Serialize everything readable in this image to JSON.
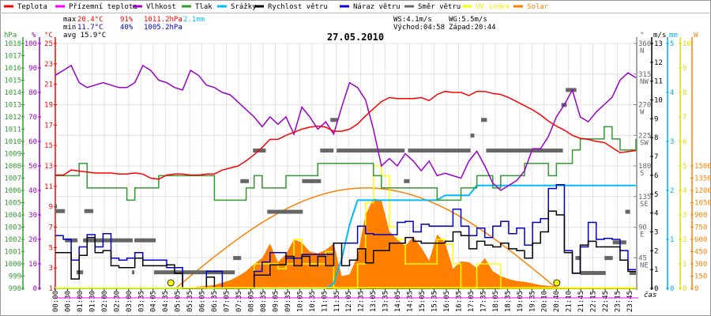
{
  "chart_data": {
    "type": "line",
    "title": "27.05.2010",
    "legend": [
      {
        "label": "Teplota",
        "color": "#ff0000"
      },
      {
        "label": "Přízemní teplota",
        "color": "#ff00ff"
      },
      {
        "label": "Vlhkost",
        "color": "#9900cc"
      },
      {
        "label": "Tlak",
        "color": "#339933"
      },
      {
        "label": "Srážky",
        "color": "#00bbff"
      },
      {
        "label": "Rychlost větru",
        "color": "#000000"
      },
      {
        "label": "Náraz větru",
        "color": "#0000cc"
      },
      {
        "label": "Směr větru",
        "color": "#666666"
      },
      {
        "label": "UV index",
        "color": "#ffff00"
      },
      {
        "label": "Solar",
        "color": "#ff8000"
      }
    ],
    "legend_placement": "top",
    "stats": {
      "max_label": "max",
      "max_temp": "20.4°C",
      "max_hum": "91%",
      "max_press": "1011.2hPa",
      "rain_total": "2.1mm",
      "min_label": "min",
      "min_temp": "11.7°C",
      "min_hum": "40%",
      "min_press": "1005.2hPa",
      "avg": "avg 15.9°C",
      "ws": "WS:4.1m/s",
      "wg": "WG:5.5m/s",
      "sunrise": "Východ:04:58",
      "sunset": "Západ:20:44"
    },
    "sun": {
      "rise_h": 4.97,
      "set_h": 20.73,
      "theoretical_peak_w": 1230
    },
    "xlabel": "čas",
    "x_range_hours": [
      0,
      24
    ],
    "x_ticks": [
      "00:00",
      "00:30",
      "01:00",
      "01:30",
      "02:00",
      "02:30",
      "03:00",
      "03:35",
      "04:05",
      "04:35",
      "05:05",
      "05:35",
      "06:05",
      "06:35",
      "07:05",
      "07:35",
      "08:05",
      "08:35",
      "09:05",
      "09:35",
      "10:05",
      "10:35",
      "11:05",
      "11:35",
      "12:05",
      "12:35",
      "13:05",
      "13:35",
      "14:05",
      "14:35",
      "15:05",
      "15:35",
      "16:05",
      "16:35",
      "17:05",
      "17:35",
      "18:05",
      "18:35",
      "19:05",
      "19:35",
      "20:10",
      "20:40",
      "21:10",
      "21:45",
      "22:15",
      "22:45",
      "23:15",
      "23:45"
    ],
    "axes": {
      "pressure": {
        "unit": "hPa",
        "range": [
          998,
          1018
        ],
        "step": 1,
        "color": "#339933"
      },
      "humidity": {
        "unit": "%",
        "range": [
          0,
          100
        ],
        "step": 10,
        "color": "#9900cc"
      },
      "temperature": {
        "unit": "°C",
        "range": [
          1,
          25
        ],
        "step": 2,
        "color": "#ff0000"
      },
      "direction": {
        "unit": "°",
        "range": [
          0,
          360
        ],
        "ticks": [
          {
            "v": 45,
            "label": "45",
            "c": "NE"
          },
          {
            "v": 90,
            "label": "90",
            "c": "E"
          },
          {
            "v": 135,
            "label": "135",
            "c": "SE"
          },
          {
            "v": 180,
            "label": "180",
            "c": "S"
          },
          {
            "v": 225,
            "label": "225",
            "c": "SW"
          },
          {
            "v": 270,
            "label": "270",
            "c": "W"
          },
          {
            "v": 315,
            "label": "315",
            "c": "NW"
          },
          {
            "v": 360,
            "label": "360",
            "c": "N"
          }
        ],
        "color": "#666666"
      },
      "wind": {
        "unit": "m/s",
        "range": [
          0,
          13
        ],
        "step": 1,
        "color": "#000000"
      },
      "rain": {
        "unit": "mm",
        "range": [
          0,
          5
        ],
        "step": 1,
        "color": "#00aaee"
      },
      "uv": {
        "unit": "",
        "range": [
          0,
          10
        ],
        "step": 1,
        "color": "#dddd00"
      },
      "solar": {
        "unit": "W",
        "range": [
          0,
          3000
        ],
        "labeled_max": 1500,
        "step": 150,
        "color": "#ff8000"
      }
    },
    "grid": true,
    "series": {
      "temperature": [
        12.1,
        12.1,
        12.6,
        12.5,
        12.4,
        12.3,
        12.3,
        12.3,
        12.2,
        12.2,
        12.3,
        12.2,
        11.8,
        11.7,
        12.1,
        12.2,
        12.2,
        12.1,
        12.1,
        12.2,
        12.2,
        12.6,
        12.8,
        13.0,
        13.5,
        14.1,
        14.8,
        15.6,
        15.6,
        16.0,
        16.3,
        16.6,
        16.8,
        16.9,
        16.8,
        16.4,
        16.4,
        16.6,
        17.1,
        17.9,
        18.6,
        19.3,
        19.7,
        19.6,
        19.6,
        19.6,
        19.7,
        19.4,
        20.0,
        20.3,
        20.2,
        20.2,
        19.9,
        20.3,
        20.3,
        20.1,
        20.0,
        19.7,
        19.3,
        18.9,
        18.5,
        18.0,
        17.4,
        16.9,
        16.5,
        16.0,
        15.7,
        15.6,
        15.4,
        15.3,
        14.8,
        14.3,
        14.4,
        14.5
      ],
      "humidity": [
        87,
        89,
        91,
        84,
        82,
        83,
        84,
        83,
        82,
        82,
        84,
        91,
        89,
        85,
        84,
        82,
        81,
        89,
        87,
        83,
        82,
        80,
        79,
        76,
        73,
        70,
        66,
        70,
        67,
        70,
        63,
        74,
        70,
        65,
        68,
        63,
        74,
        84,
        82,
        77,
        65,
        50,
        53,
        50,
        55,
        52,
        48,
        52,
        46,
        47,
        46,
        45,
        52,
        56,
        50,
        43,
        40,
        42,
        44,
        48,
        57,
        57,
        62,
        70,
        75,
        81,
        70,
        68,
        72,
        75,
        78,
        85,
        88,
        86
      ],
      "pressure": [
        1007.2,
        1007.2,
        1007.2,
        1008.2,
        1006.2,
        1006.2,
        1006.2,
        1006.2,
        1006.2,
        1005.2,
        1006.2,
        1006.2,
        1006.2,
        1007.2,
        1007.2,
        1007.2,
        1007.2,
        1007.2,
        1007.2,
        1007.2,
        1005.2,
        1005.2,
        1005.2,
        1005.2,
        1006.2,
        1007.2,
        1006.2,
        1006.2,
        1006.2,
        1007.2,
        1007.2,
        1007.2,
        1007.2,
        1008.2,
        1008.2,
        1008.2,
        1008.2,
        1008.2,
        1008.2,
        1008.2,
        1007.2,
        1006.2,
        1006.2,
        1006.2,
        1006.2,
        1006.2,
        1006.2,
        1006.2,
        1005.2,
        1005.2,
        1005.2,
        1006.2,
        1006.2,
        1007.2,
        1007.2,
        1006.2,
        1007.2,
        1007.2,
        1007.2,
        1008.2,
        1008.2,
        1008.2,
        1007.2,
        1008.2,
        1008.2,
        1009.3,
        1010.2,
        1010.2,
        1010.2,
        1011.2,
        1010.2,
        1009.3,
        1009.3,
        1010.2
      ],
      "apparent_temperature": [],
      "rain": [
        0,
        0,
        0,
        0,
        0,
        0,
        0,
        0,
        0,
        0,
        0,
        0,
        0,
        0,
        0,
        0,
        0,
        0,
        0,
        0,
        0,
        0,
        0,
        0,
        0,
        0,
        0,
        0,
        0,
        0,
        0,
        0,
        0,
        0,
        0,
        0.1,
        0.6,
        1.3,
        1.8,
        1.8,
        1.8,
        1.8,
        1.8,
        1.8,
        1.8,
        1.8,
        1.8,
        1.8,
        1.8,
        1.9,
        1.9,
        1.9,
        1.9,
        2.1,
        2.1,
        2.1,
        2.1,
        2.1,
        2.1,
        2.1,
        2.1,
        2.1,
        2.1,
        2.1,
        2.1,
        2.1,
        2.1,
        2.1,
        2.1,
        2.1,
        2.1,
        2.1,
        2.1,
        2.1
      ],
      "wind_speed": [
        1.9,
        1.9,
        0.5,
        1.75,
        2.7,
        1.9,
        2.0,
        1.2,
        1.1,
        1.1,
        1.6,
        1.2,
        1.2,
        1.2,
        1.25,
        0.8,
        0,
        0,
        0,
        0.6,
        0,
        0,
        0,
        0,
        0,
        0.7,
        0.7,
        1.25,
        1.25,
        1.7,
        1.2,
        1.7,
        1.2,
        1.7,
        1.2,
        2.4,
        1.2,
        1.5,
        2.1,
        1.35,
        2.0,
        2.0,
        2.4,
        2.4,
        2.7,
        2.5,
        2.4,
        2.4,
        2.4,
        2.5,
        3.0,
        2.8,
        2.1,
        2.5,
        2.3,
        2.2,
        2.4,
        2.1,
        2.0,
        1.6,
        2.4,
        3.0,
        4.1,
        3.9,
        1.9,
        0.8,
        2.3,
        2.5,
        2.2,
        2.2,
        2.2,
        1.5,
        0.9,
        0.9
      ],
      "wind_gust": [
        2.8,
        2.6,
        1.5,
        2.2,
        2.85,
        2.2,
        2.9,
        1.6,
        1.5,
        1.6,
        1.9,
        1.5,
        1.5,
        1.5,
        1.1,
        1.1,
        0,
        0,
        0,
        0.9,
        0.9,
        0,
        0,
        0,
        0,
        0.9,
        1.4,
        1.9,
        1.9,
        1.6,
        1.6,
        1.8,
        1.8,
        1.8,
        1.8,
        2.4,
        2.4,
        2.4,
        3.3,
        2.9,
        2.85,
        2.85,
        2.85,
        3.5,
        3.55,
        3.0,
        3.4,
        3.3,
        3.3,
        3.3,
        4.2,
        3.3,
        2.8,
        3.2,
        2.7,
        3.3,
        3.55,
        2.9,
        3.2,
        2.3,
        3.5,
        3.7,
        5.3,
        5.5,
        2.0,
        0.8,
        2.2,
        3.5,
        2.6,
        2.65,
        2.6,
        2.0,
        1.0,
        1.0
      ],
      "uv_index": [
        0,
        0,
        0,
        0,
        0,
        0,
        0,
        0,
        0,
        0,
        0,
        0,
        0,
        0,
        0,
        0,
        0,
        0,
        0,
        0,
        0,
        0,
        0,
        0,
        0,
        1,
        1,
        1,
        0.8,
        1,
        2,
        1,
        1,
        1,
        1.5,
        0,
        0,
        0,
        1,
        3.5,
        5,
        4.6,
        2.5,
        2,
        1,
        1,
        1,
        1,
        2,
        1.8,
        1,
        0,
        0,
        1,
        1,
        1,
        0,
        0,
        0,
        0,
        0,
        0,
        0,
        0,
        0,
        0,
        0,
        0,
        0,
        0,
        0,
        0,
        0,
        0
      ],
      "solar": [
        0,
        0,
        0,
        0,
        0,
        0,
        0,
        0,
        0,
        0,
        0,
        0,
        0,
        0,
        0,
        0,
        0,
        10,
        20,
        30,
        40,
        70,
        100,
        150,
        210,
        300,
        370,
        550,
        320,
        420,
        600,
        560,
        450,
        430,
        470,
        550,
        150,
        170,
        400,
        900,
        1100,
        1080,
        700,
        600,
        520,
        630,
        500,
        340,
        660,
        560,
        240,
        330,
        320,
        250,
        370,
        210,
        150,
        115,
        90,
        80,
        60,
        40,
        30,
        20,
        10,
        0,
        0,
        0,
        0,
        0,
        0,
        0,
        0,
        0
      ],
      "wind_direction_segments": [
        {
          "from": 0,
          "to": 0.07,
          "deg": 120
        },
        {
          "from": 0,
          "to": 0.4,
          "deg": 113
        },
        {
          "from": 0.4,
          "to": 0.92,
          "deg": 70
        },
        {
          "from": 0.88,
          "to": 1.15,
          "deg": 23
        },
        {
          "from": 1.15,
          "to": 3.2,
          "deg": 70
        },
        {
          "from": 1.2,
          "to": 1.57,
          "deg": 113
        },
        {
          "from": 3.17,
          "to": 3.27,
          "deg": 23
        },
        {
          "from": 3.27,
          "to": 4.15,
          "deg": 70
        },
        {
          "from": 4.08,
          "to": 7.42,
          "deg": 23
        },
        {
          "from": 7.35,
          "to": 7.68,
          "deg": 44
        },
        {
          "from": 7.65,
          "to": 8.0,
          "deg": 157
        },
        {
          "from": 8.17,
          "to": 8.7,
          "deg": 202
        },
        {
          "from": 8.76,
          "to": 10.23,
          "deg": 112
        },
        {
          "from": 10.2,
          "to": 10.98,
          "deg": 157
        },
        {
          "from": 10.95,
          "to": 11.5,
          "deg": 202
        },
        {
          "from": 11.37,
          "to": 11.67,
          "deg": 247
        },
        {
          "from": 11.63,
          "to": 14.44,
          "deg": 202
        },
        {
          "from": 14.41,
          "to": 14.64,
          "deg": 157
        },
        {
          "from": 14.58,
          "to": 17.16,
          "deg": 202
        },
        {
          "from": 17.16,
          "to": 17.32,
          "deg": 224
        },
        {
          "from": 17.6,
          "to": 17.84,
          "deg": 247
        },
        {
          "from": 17.81,
          "to": 20.98,
          "deg": 202
        },
        {
          "from": 20.92,
          "to": 21.14,
          "deg": 269
        },
        {
          "from": 21.1,
          "to": 21.54,
          "deg": 291
        },
        {
          "from": 21.5,
          "to": 21.73,
          "deg": 44
        },
        {
          "from": 21.7,
          "to": 22.75,
          "deg": 22
        },
        {
          "from": 22.7,
          "to": 23.04,
          "deg": 44
        },
        {
          "from": 23.04,
          "to": 23.6,
          "deg": 67
        },
        {
          "from": 23.56,
          "to": 23.76,
          "deg": 112
        },
        {
          "from": 23.73,
          "to": 24,
          "deg": 22
        }
      ]
    }
  }
}
